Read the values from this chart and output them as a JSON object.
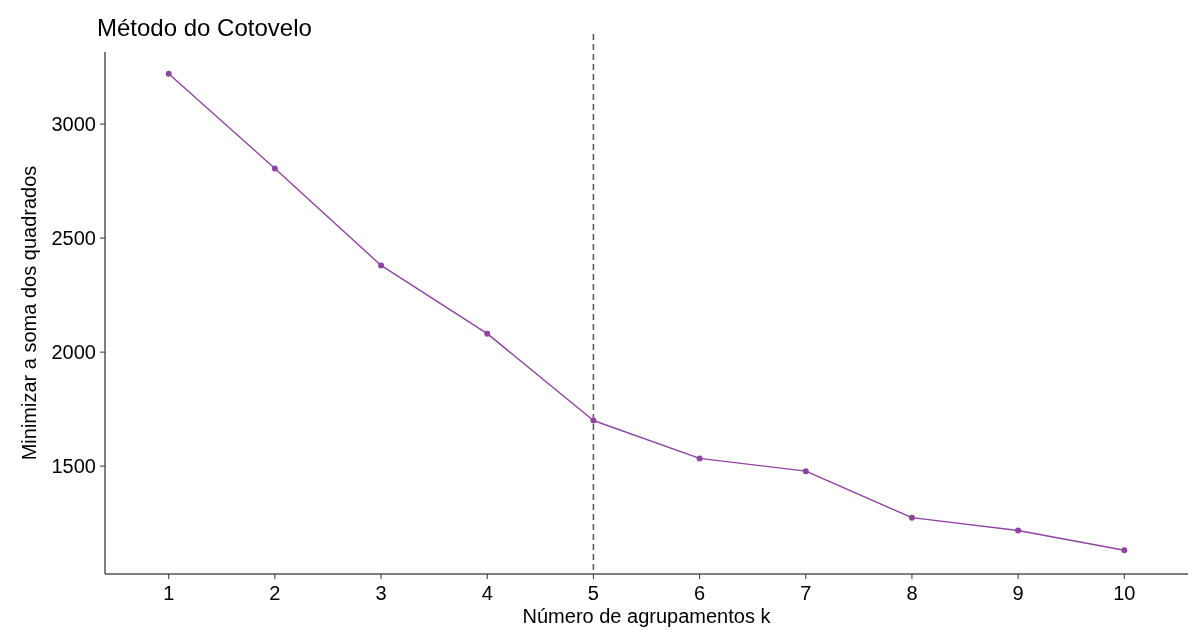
{
  "chart_data": {
    "type": "line",
    "title": "Método do Cotovelo",
    "xlabel": "Número de agrupamentos k",
    "ylabel": "Minimizar a soma dos quadrados",
    "x": [
      1,
      2,
      3,
      4,
      5,
      6,
      7,
      8,
      9,
      10
    ],
    "series": [
      {
        "color": "#8e44a0",
        "values": [
          3221,
          2805,
          2380,
          2081,
          1700,
          1534,
          1478,
          1274,
          1218,
          1131
        ]
      }
    ],
    "xlim": [
      0.4,
      10.6
    ],
    "xticks": [
      1,
      2,
      3,
      4,
      5,
      6,
      7,
      8,
      9,
      10
    ],
    "ylim": [
      1027,
      3316
    ],
    "yticks": [
      1500,
      2000,
      2500,
      3000
    ],
    "ref_lines": [
      {
        "axis": "x",
        "value": 5,
        "line_style": "dashed",
        "color": "#555555"
      }
    ],
    "grid": false,
    "marker": "circle",
    "line_style": "solid"
  }
}
